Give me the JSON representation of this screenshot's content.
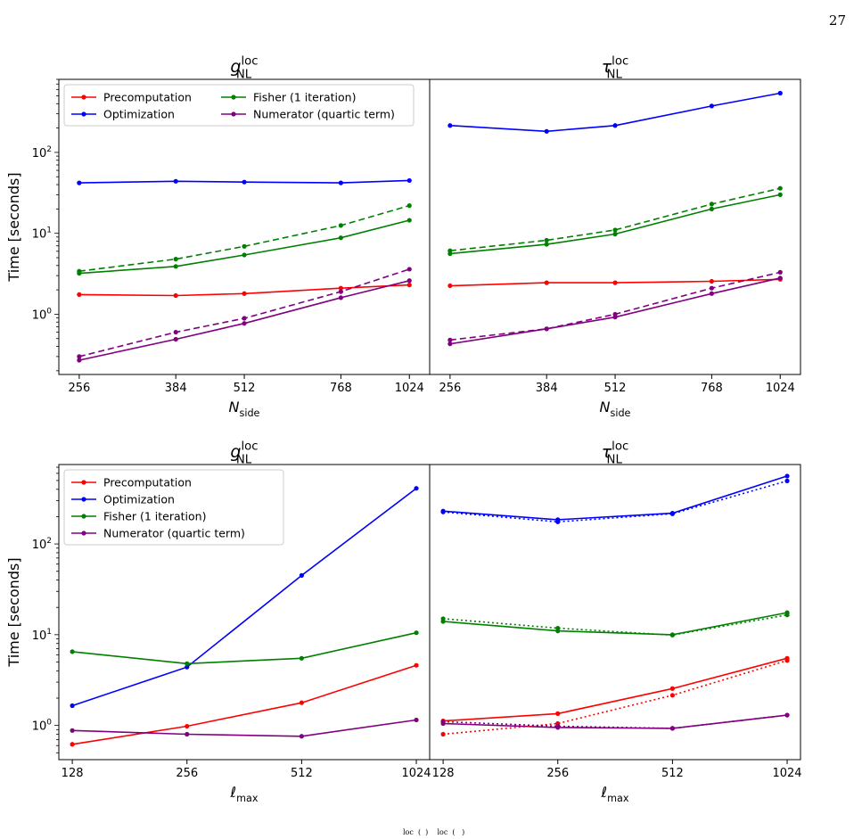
{
  "page": {
    "number": "27",
    "caption_fragment": "loc  (  )    loc  (   )"
  },
  "colors": {
    "Precomputation": "#ff0000",
    "Optimization": "#0000ff",
    "Fisher (1 iteration)": "#008000",
    "Numerator (quartic term)": "#800080"
  },
  "chart_data": [
    {
      "type": "line",
      "panel": "top-left",
      "title": "g_NL^loc",
      "title_main": "g",
      "title_sub": "NL",
      "title_sup": "loc",
      "xlabel": "N_side",
      "xlabel_main": "N",
      "xlabel_sub": "side",
      "ylabel": "Time [seconds]",
      "yscale": "log",
      "ylim": [
        0.18,
        800
      ],
      "xscale": "log2",
      "xlim": [
        235,
        1115
      ],
      "x": [
        256,
        384,
        512,
        768,
        1024
      ],
      "xtick_labels": [
        "256",
        "384",
        "512",
        "768",
        "1024"
      ],
      "ytick_labels": [
        "10^0",
        "10^1",
        "10^2"
      ],
      "legend": {
        "placement": "top-left",
        "columns": 2
      },
      "series": [
        {
          "name": "Precomputation",
          "style": "solid",
          "values": [
            1.75,
            1.7,
            1.8,
            2.1,
            2.3
          ]
        },
        {
          "name": "Optimization",
          "style": "solid",
          "values": [
            42,
            44,
            43,
            42,
            45
          ]
        },
        {
          "name": "Fisher (1 iteration)",
          "style": "solid",
          "values": [
            3.2,
            3.9,
            5.4,
            8.8,
            14.5
          ]
        },
        {
          "name": "Numerator (quartic term)",
          "style": "solid",
          "values": [
            0.27,
            0.49,
            0.77,
            1.6,
            2.6
          ]
        },
        {
          "name": "",
          "color_of": "Fisher (1 iteration)",
          "style": "dashed",
          "values": [
            3.4,
            4.8,
            6.9,
            12.5,
            22
          ]
        },
        {
          "name": "",
          "color_of": "Numerator (quartic term)",
          "style": "dashed",
          "values": [
            0.3,
            0.6,
            0.89,
            1.9,
            3.6
          ]
        }
      ]
    },
    {
      "type": "line",
      "panel": "top-right",
      "title": "τ_NL^loc",
      "title_main": "τ",
      "title_sub": "NL",
      "title_sup": "loc",
      "xlabel": "N_side",
      "xlabel_main": "N",
      "xlabel_sub": "side",
      "yscale": "log",
      "ylim": [
        0.18,
        800
      ],
      "xscale": "log2",
      "xlim": [
        235,
        1115
      ],
      "x": [
        256,
        384,
        512,
        768,
        1024
      ],
      "xtick_labels": [
        "256",
        "384",
        "512",
        "768",
        "1024"
      ],
      "series": [
        {
          "name": "",
          "color_of": "Precomputation",
          "style": "solid",
          "values": [
            2.25,
            2.45,
            2.45,
            2.55,
            2.7
          ]
        },
        {
          "name": "",
          "color_of": "Optimization",
          "style": "solid",
          "values": [
            215,
            182,
            215,
            375,
            540
          ]
        },
        {
          "name": "",
          "color_of": "Fisher (1 iteration)",
          "style": "solid",
          "values": [
            5.6,
            7.3,
            9.8,
            20,
            30
          ]
        },
        {
          "name": "",
          "color_of": "Numerator (quartic term)",
          "style": "solid",
          "values": [
            0.43,
            0.66,
            0.92,
            1.8,
            2.8
          ]
        },
        {
          "name": "",
          "color_of": "Fisher (1 iteration)",
          "style": "dashed",
          "values": [
            6.1,
            8.2,
            11,
            23,
            36
          ]
        },
        {
          "name": "",
          "color_of": "Numerator (quartic term)",
          "style": "dashed",
          "values": [
            0.48,
            0.66,
            1.0,
            2.1,
            3.3
          ]
        }
      ]
    },
    {
      "type": "line",
      "panel": "bottom-left",
      "title": "g_NL^loc",
      "title_main": "g",
      "title_sub": "NL",
      "title_sup": "loc",
      "xlabel": "ℓ_max",
      "xlabel_main": "ℓ",
      "xlabel_sub": "max",
      "ylabel": "Time [seconds]",
      "yscale": "log",
      "ylim": [
        0.42,
        750
      ],
      "xscale": "log2",
      "xlim": [
        118,
        1110
      ],
      "x": [
        128,
        256,
        512,
        1024
      ],
      "xtick_labels": [
        "128",
        "256",
        "512",
        "1024"
      ],
      "ytick_labels": [
        "10^0",
        "10^1",
        "10^2"
      ],
      "legend": {
        "placement": "top-left",
        "columns": 1
      },
      "series": [
        {
          "name": "Precomputation",
          "style": "solid",
          "values": [
            0.62,
            0.98,
            1.78,
            4.6
          ]
        },
        {
          "name": "Optimization",
          "style": "solid",
          "values": [
            1.65,
            4.4,
            45,
            410
          ]
        },
        {
          "name": "Fisher (1 iteration)",
          "style": "solid",
          "values": [
            6.5,
            4.8,
            5.5,
            10.5
          ]
        },
        {
          "name": "Numerator (quartic term)",
          "style": "solid",
          "values": [
            0.88,
            0.8,
            0.76,
            1.15
          ]
        }
      ]
    },
    {
      "type": "line",
      "panel": "bottom-right",
      "title": "τ_NL^loc",
      "title_main": "τ",
      "title_sub": "NL",
      "title_sup": "loc",
      "xlabel": "ℓ_max",
      "xlabel_main": "ℓ",
      "xlabel_sub": "max",
      "yscale": "log",
      "ylim": [
        0.42,
        750
      ],
      "xscale": "log2",
      "xlim": [
        118,
        1110
      ],
      "x": [
        128,
        256,
        512,
        1024
      ],
      "xtick_labels": [
        "128",
        "256",
        "512",
        "1024"
      ],
      "series": [
        {
          "name": "",
          "color_of": "Precomputation",
          "style": "solid",
          "values": [
            1.12,
            1.35,
            2.55,
            5.5
          ]
        },
        {
          "name": "",
          "color_of": "Optimization",
          "style": "solid",
          "values": [
            230,
            185,
            218,
            560
          ]
        },
        {
          "name": "",
          "color_of": "Fisher (1 iteration)",
          "style": "solid",
          "values": [
            14,
            11,
            10,
            17.5
          ]
        },
        {
          "name": "",
          "color_of": "Numerator (quartic term)",
          "style": "solid",
          "values": [
            1.05,
            0.95,
            0.93,
            1.3
          ]
        },
        {
          "name": "",
          "color_of": "Precomputation",
          "style": "dotted",
          "values": [
            0.8,
            1.05,
            2.15,
            5.2
          ]
        },
        {
          "name": "",
          "color_of": "Optimization",
          "style": "dotted",
          "values": [
            225,
            175,
            215,
            495
          ]
        },
        {
          "name": "",
          "color_of": "Fisher (1 iteration)",
          "style": "dotted",
          "values": [
            15,
            11.8,
            9.9,
            16.5
          ]
        },
        {
          "name": "",
          "color_of": "Numerator (quartic term)",
          "style": "dotted",
          "values": [
            1.1,
            0.98,
            0.93,
            1.3
          ]
        }
      ]
    }
  ]
}
